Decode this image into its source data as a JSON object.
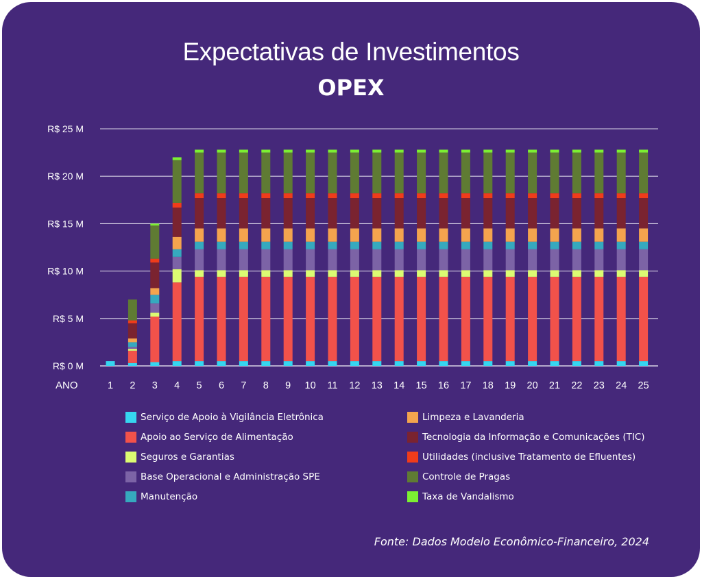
{
  "title": "Expectativas de Investimentos",
  "subtitle": "OPEX",
  "source": "Fonte: Dados Modelo Econômico-Financeiro, 2024",
  "colors": {
    "background": "#45287a",
    "grid": "#d9d4e6"
  },
  "chart_data": {
    "type": "bar",
    "stacked": true,
    "title": "Expectativas de Investimentos",
    "subtitle": "OPEX",
    "xlabel": "ANO",
    "ylabel": "",
    "ylim": [
      0,
      25
    ],
    "y_unit": "R$ milhões",
    "y_ticks": [
      0,
      5,
      10,
      15,
      20,
      25
    ],
    "y_tick_labels": [
      "R$ 0 M",
      "R$ 5  M",
      "R$ 10 M",
      "R$ 15 M",
      "R$ 20 M",
      "R$ 25 M"
    ],
    "grid": true,
    "legend_position": "bottom",
    "categories": [
      "1",
      "2",
      "3",
      "4",
      "5",
      "6",
      "7",
      "8",
      "9",
      "10",
      "11",
      "12",
      "13",
      "14",
      "15",
      "16",
      "17",
      "18",
      "19",
      "20",
      "21",
      "22",
      "23",
      "24",
      "25"
    ],
    "series": [
      {
        "name": "Serviço de Apoio à Vigilância Eletrônica",
        "color": "#36d6f0",
        "values": [
          0.5,
          0.3,
          0.4,
          0.5,
          0.5,
          0.5,
          0.5,
          0.5,
          0.5,
          0.5,
          0.5,
          0.5,
          0.5,
          0.5,
          0.5,
          0.5,
          0.5,
          0.5,
          0.5,
          0.5,
          0.5,
          0.5,
          0.5,
          0.5,
          0.5
        ]
      },
      {
        "name": "Apoio ao Serviço de Alimentação",
        "color": "#f2524a",
        "values": [
          0,
          1.3,
          4.8,
          8.3,
          8.9,
          8.9,
          8.9,
          8.9,
          8.9,
          8.9,
          8.9,
          8.9,
          8.9,
          8.9,
          8.9,
          8.9,
          8.9,
          8.9,
          8.9,
          8.9,
          8.9,
          8.9,
          8.9,
          8.9,
          8.9
        ]
      },
      {
        "name": "Seguros e Garantias",
        "color": "#dcfb72",
        "values": [
          0,
          0.2,
          0.4,
          1.4,
          0.7,
          0.7,
          0.7,
          0.7,
          0.7,
          0.7,
          0.7,
          0.7,
          0.7,
          0.7,
          0.7,
          0.7,
          0.7,
          0.7,
          0.7,
          0.7,
          0.7,
          0.7,
          0.7,
          0.7,
          0.7
        ]
      },
      {
        "name": "Base Operacional e Administração SPE",
        "color": "#7c63a6",
        "values": [
          0,
          0.2,
          1.0,
          1.3,
          2.2,
          2.2,
          2.2,
          2.2,
          2.2,
          2.2,
          2.2,
          2.2,
          2.2,
          2.2,
          2.2,
          2.2,
          2.2,
          2.2,
          2.2,
          2.2,
          2.2,
          2.2,
          2.2,
          2.2,
          2.2
        ]
      },
      {
        "name": "Manutenção",
        "color": "#36a9be",
        "values": [
          0,
          0.5,
          0.9,
          0.8,
          0.8,
          0.8,
          0.8,
          0.8,
          0.8,
          0.8,
          0.8,
          0.8,
          0.8,
          0.8,
          0.8,
          0.8,
          0.8,
          0.8,
          0.8,
          0.8,
          0.8,
          0.8,
          0.8,
          0.8,
          0.8
        ]
      },
      {
        "name": "Limpeza e Lavanderia",
        "color": "#f4a44e",
        "values": [
          0,
          0.4,
          0.7,
          1.3,
          1.4,
          1.4,
          1.4,
          1.4,
          1.4,
          1.4,
          1.4,
          1.4,
          1.4,
          1.4,
          1.4,
          1.4,
          1.4,
          1.4,
          1.4,
          1.4,
          1.4,
          1.4,
          1.4,
          1.4,
          1.4
        ]
      },
      {
        "name": "Tecnologia da Informação e Comunicações (TIC)",
        "color": "#7a2330",
        "values": [
          0,
          1.6,
          2.7,
          3.1,
          3.2,
          3.2,
          3.2,
          3.2,
          3.2,
          3.2,
          3.2,
          3.2,
          3.2,
          3.2,
          3.2,
          3.2,
          3.2,
          3.2,
          3.2,
          3.2,
          3.2,
          3.2,
          3.2,
          3.2,
          3.2
        ]
      },
      {
        "name": "Utilidades (inclusive Tratamento de Efluentes)",
        "color": "#f03c1a",
        "values": [
          0,
          0.3,
          0.4,
          0.5,
          0.5,
          0.5,
          0.5,
          0.5,
          0.5,
          0.5,
          0.5,
          0.5,
          0.5,
          0.5,
          0.5,
          0.5,
          0.5,
          0.5,
          0.5,
          0.5,
          0.5,
          0.5,
          0.5,
          0.5,
          0.5
        ]
      },
      {
        "name": "Controle de Pragas",
        "color": "#5f7b33",
        "values": [
          0,
          2.2,
          3.5,
          4.5,
          4.3,
          4.3,
          4.3,
          4.3,
          4.3,
          4.3,
          4.3,
          4.3,
          4.3,
          4.3,
          4.3,
          4.3,
          4.3,
          4.3,
          4.3,
          4.3,
          4.3,
          4.3,
          4.3,
          4.3,
          4.3
        ]
      },
      {
        "name": "Taxa de Vandalismo",
        "color": "#7cf032",
        "values": [
          0,
          0,
          0.2,
          0.3,
          0.3,
          0.3,
          0.3,
          0.3,
          0.3,
          0.3,
          0.3,
          0.3,
          0.3,
          0.3,
          0.3,
          0.3,
          0.3,
          0.3,
          0.3,
          0.3,
          0.3,
          0.3,
          0.3,
          0.3,
          0.3
        ]
      }
    ]
  },
  "legend_left": [
    {
      "label": "Serviço de Apoio à Vigilância Eletrônica",
      "color": "#36d6f0"
    },
    {
      "label": "Apoio ao Serviço de Alimentação",
      "color": "#f2524a"
    },
    {
      "label": "Seguros e Garantias",
      "color": "#dcfb72"
    },
    {
      "label": "Base Operacional e Administração SPE",
      "color": "#7c63a6"
    },
    {
      "label": "Manutenção",
      "color": "#36a9be"
    }
  ],
  "legend_right": [
    {
      "label": "Limpeza e Lavanderia",
      "color": "#f4a44e"
    },
    {
      "label": "Tecnologia da Informação e Comunicações (TIC)",
      "color": "#7a2330"
    },
    {
      "label": "Utilidades (inclusive Tratamento de Efluentes)",
      "color": "#f03c1a"
    },
    {
      "label": "Controle de Pragas",
      "color": "#5f7b33"
    },
    {
      "label": "Taxa de Vandalismo",
      "color": "#7cf032"
    }
  ]
}
